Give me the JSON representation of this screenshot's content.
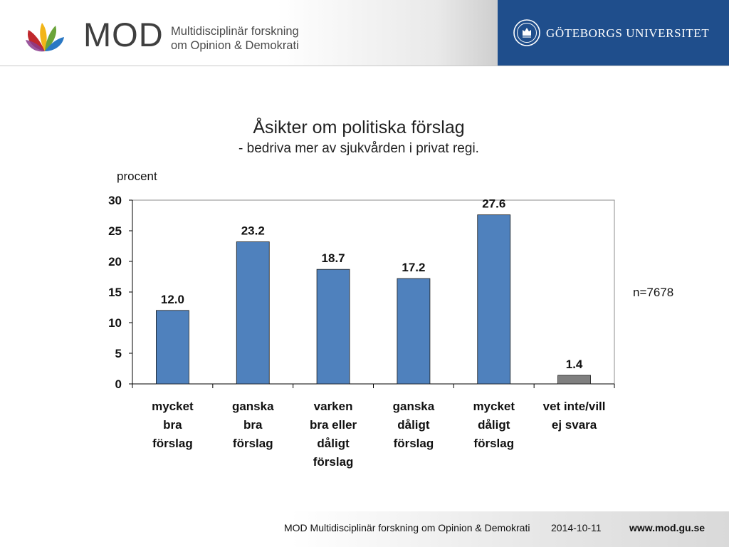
{
  "header": {
    "brand": "MOD",
    "subtitle_line1": "Multidisciplinär forskning",
    "subtitle_line2": "om Opinion & Demokrati",
    "university": "GÖTEBORGS UNIVERSITET",
    "colors": {
      "panel": "#1f4e8c",
      "flower_red": "#c0282d",
      "flower_yellow": "#f2b518",
      "flower_blue": "#2a78c4",
      "flower_green": "#6aa43a",
      "flower_purple": "#8a3a8c"
    }
  },
  "chart_data": {
    "type": "bar",
    "title": "Åsikter om politiska förslag",
    "subtitle": "- bedriva mer av sjukvården i privat regi.",
    "ylabel": "procent",
    "ylim": [
      0,
      30
    ],
    "yticks": [
      "0",
      "5",
      "10",
      "15",
      "20",
      "25",
      "30"
    ],
    "categories": [
      [
        "mycket",
        "bra",
        "förslag"
      ],
      [
        "ganska",
        "bra",
        "förslag"
      ],
      [
        "varken",
        "bra eller",
        "dåligt",
        "förslag"
      ],
      [
        "ganska",
        "dåligt",
        "förslag"
      ],
      [
        "mycket",
        "dåligt",
        "förslag"
      ],
      [
        "vet inte/vill",
        "ej svara"
      ]
    ],
    "values": [
      12.0,
      23.2,
      18.7,
      17.2,
      27.6,
      1.4
    ],
    "value_labels": [
      "12.0",
      "23.2",
      "18.7",
      "17.2",
      "27.6",
      "1.4"
    ],
    "bar_colors": [
      "#4f81bd",
      "#4f81bd",
      "#4f81bd",
      "#4f81bd",
      "#4f81bd",
      "#7f7f7f"
    ],
    "grid": false,
    "annotation": "n=7678"
  },
  "footer": {
    "org": "MOD Multidisciplinär forskning om Opinion & Demokrati",
    "date": "2014-10-11",
    "url": "www.mod.gu.se"
  }
}
